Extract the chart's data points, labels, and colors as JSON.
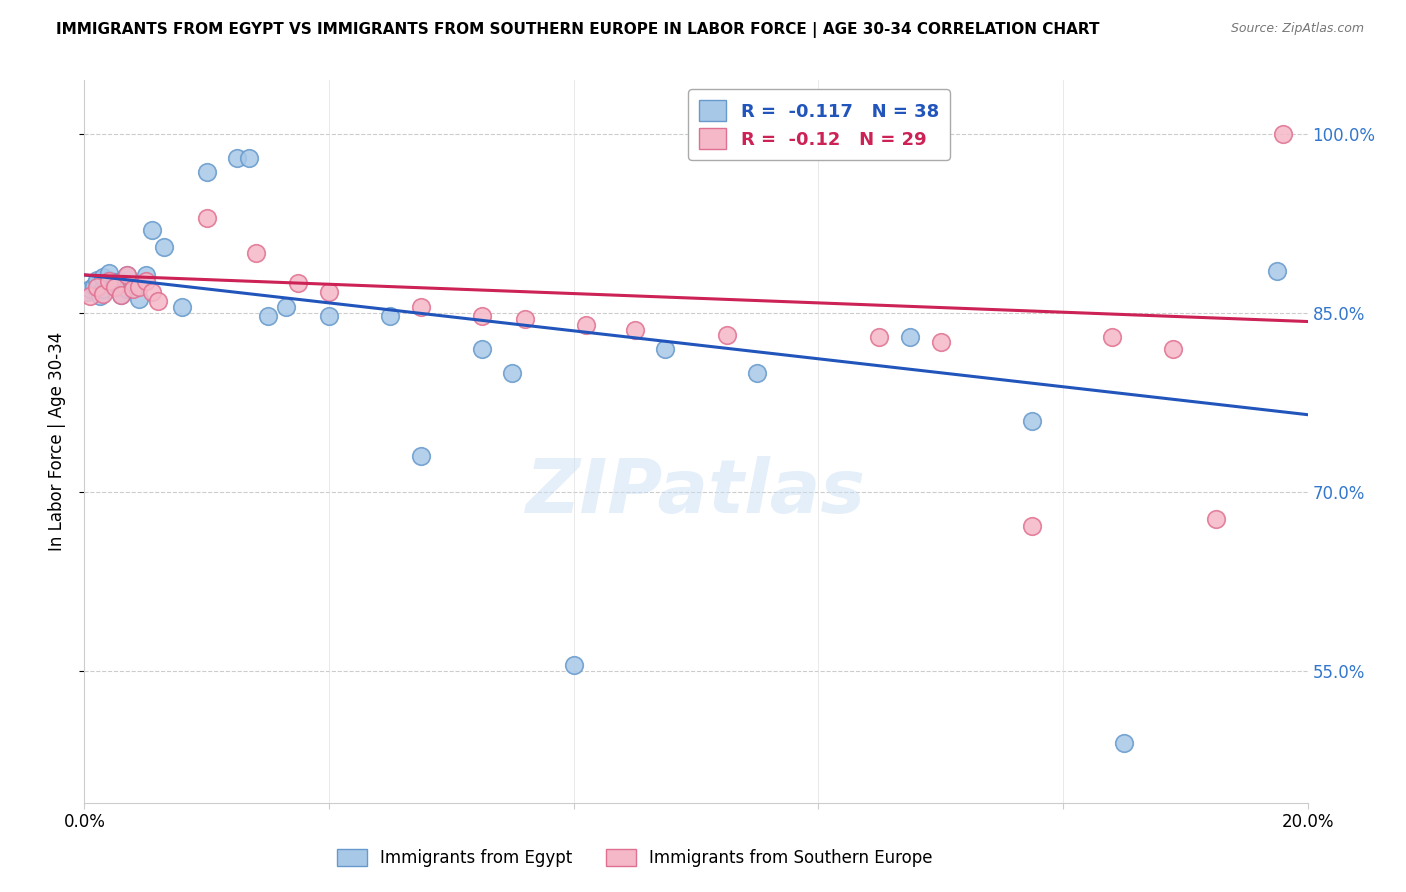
{
  "title": "IMMIGRANTS FROM EGYPT VS IMMIGRANTS FROM SOUTHERN EUROPE IN LABOR FORCE | AGE 30-34 CORRELATION CHART",
  "source": "Source: ZipAtlas.com",
  "ylabel": "In Labor Force | Age 30-34",
  "xmin": 0.0,
  "xmax": 0.2,
  "ymin": 0.44,
  "ymax": 1.045,
  "ytick_vals": [
    0.55,
    0.7,
    0.85,
    1.0
  ],
  "ytick_labels": [
    "55.0%",
    "70.0%",
    "85.0%",
    "100.0%"
  ],
  "xtick_vals": [
    0.0,
    0.04,
    0.08,
    0.12,
    0.16,
    0.2
  ],
  "xtick_labels": [
    "0.0%",
    "",
    "",
    "",
    "",
    "20.0%"
  ],
  "hgrid_vals": [
    0.55,
    0.7,
    0.85,
    1.0
  ],
  "blue_color": "#a8c8e8",
  "blue_edge_color": "#6699cc",
  "pink_color": "#f5b8c8",
  "pink_edge_color": "#e07090",
  "blue_line_color": "#2255bb",
  "pink_line_color": "#cc2255",
  "right_axis_color": "#3377cc",
  "R_blue": -0.117,
  "N_blue": 38,
  "R_pink": -0.12,
  "N_pink": 29,
  "legend_label_blue": "Immigrants from Egypt",
  "legend_label_pink": "Immigrants from Southern Europe",
  "watermark": "ZIPatlas",
  "blue_scatter_x": [
    0.0005,
    0.001,
    0.0015,
    0.002,
    0.0025,
    0.003,
    0.003,
    0.004,
    0.004,
    0.005,
    0.005,
    0.006,
    0.006,
    0.007,
    0.007,
    0.008,
    0.009,
    0.01,
    0.011,
    0.013,
    0.016,
    0.02,
    0.025,
    0.027,
    0.03,
    0.033,
    0.04,
    0.05,
    0.055,
    0.065,
    0.07,
    0.08,
    0.095,
    0.11,
    0.135,
    0.155,
    0.17,
    0.195
  ],
  "blue_scatter_y": [
    0.868,
    0.87,
    0.873,
    0.878,
    0.864,
    0.87,
    0.88,
    0.878,
    0.884,
    0.872,
    0.876,
    0.877,
    0.865,
    0.882,
    0.87,
    0.872,
    0.862,
    0.882,
    0.92,
    0.905,
    0.855,
    0.968,
    0.98,
    0.98,
    0.848,
    0.855,
    0.848,
    0.848,
    0.73,
    0.82,
    0.8,
    0.555,
    0.82,
    0.8,
    0.83,
    0.76,
    0.49,
    0.885
  ],
  "pink_scatter_x": [
    0.001,
    0.002,
    0.003,
    0.004,
    0.005,
    0.006,
    0.007,
    0.008,
    0.009,
    0.01,
    0.011,
    0.012,
    0.02,
    0.028,
    0.035,
    0.04,
    0.055,
    0.065,
    0.072,
    0.082,
    0.09,
    0.105,
    0.13,
    0.14,
    0.155,
    0.168,
    0.178,
    0.185,
    0.196
  ],
  "pink_scatter_y": [
    0.864,
    0.872,
    0.866,
    0.877,
    0.872,
    0.865,
    0.882,
    0.87,
    0.872,
    0.877,
    0.868,
    0.86,
    0.93,
    0.9,
    0.875,
    0.868,
    0.855,
    0.848,
    0.845,
    0.84,
    0.836,
    0.832,
    0.83,
    0.826,
    0.672,
    0.83,
    0.82,
    0.678,
    1.0
  ],
  "blue_trendline_x": [
    0.0,
    0.2
  ],
  "blue_trendline_y": [
    0.882,
    0.765
  ],
  "pink_trendline_x": [
    0.0,
    0.2
  ],
  "pink_trendline_y": [
    0.882,
    0.843
  ]
}
